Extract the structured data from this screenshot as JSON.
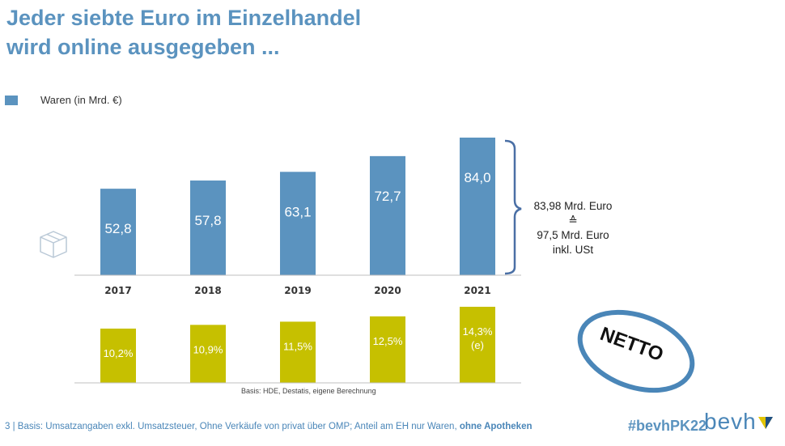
{
  "title_line1": "Jeder siebte Euro im Einzelhandel",
  "title_line2": "wird online ausgegeben ...",
  "legend": {
    "label": "Waren (in Mrd. €)",
    "color": "#5b93bf"
  },
  "chart_data": [
    {
      "type": "bar",
      "categories": [
        "2017",
        "2018",
        "2019",
        "2020",
        "2021"
      ],
      "series": [
        {
          "name": "Waren (in Mrd. €)",
          "values": [
            52.8,
            57.8,
            63.1,
            72.7,
            84.0
          ]
        }
      ],
      "value_labels": [
        "52,8",
        "57,8",
        "63,1",
        "72,7",
        "84,0"
      ],
      "ylim": [
        0,
        84.0
      ],
      "color": "#5b93bf"
    },
    {
      "type": "bar",
      "categories": [
        "2017",
        "2018",
        "2019",
        "2020",
        "2021"
      ],
      "series": [
        {
          "values": [
            10.2,
            10.9,
            11.5,
            12.5,
            14.3
          ]
        }
      ],
      "value_labels": [
        "10,2%",
        "10,9%",
        "11,5%",
        "12,5%",
        "14,3%"
      ],
      "value_suffix": [
        "",
        "",
        "",
        "",
        "(e)"
      ],
      "ylim": [
        0,
        14.3
      ],
      "color": "#c6c000"
    }
  ],
  "note": {
    "line1": "83,98 Mrd. Euro",
    "line2": "≙",
    "line3": "97,5 Mrd. Euro",
    "line4": "inkl. USt"
  },
  "stamp_text": "NETTO",
  "basis": "Basis: HDE, Destatis, eigene Berechnung",
  "footer": {
    "text": "3 | Basis: Umsatzangaben exkl. Umsatzsteuer, Ohne Verkäufe von privat über OMP; Anteil am EH nur Waren, ",
    "bold": "ohne Apotheken"
  },
  "hashtag": "#bevhPK22",
  "brand": "bevh",
  "icons": {
    "box": "package-box-icon",
    "brand_mark": "bevh-logo-mark-icon"
  }
}
